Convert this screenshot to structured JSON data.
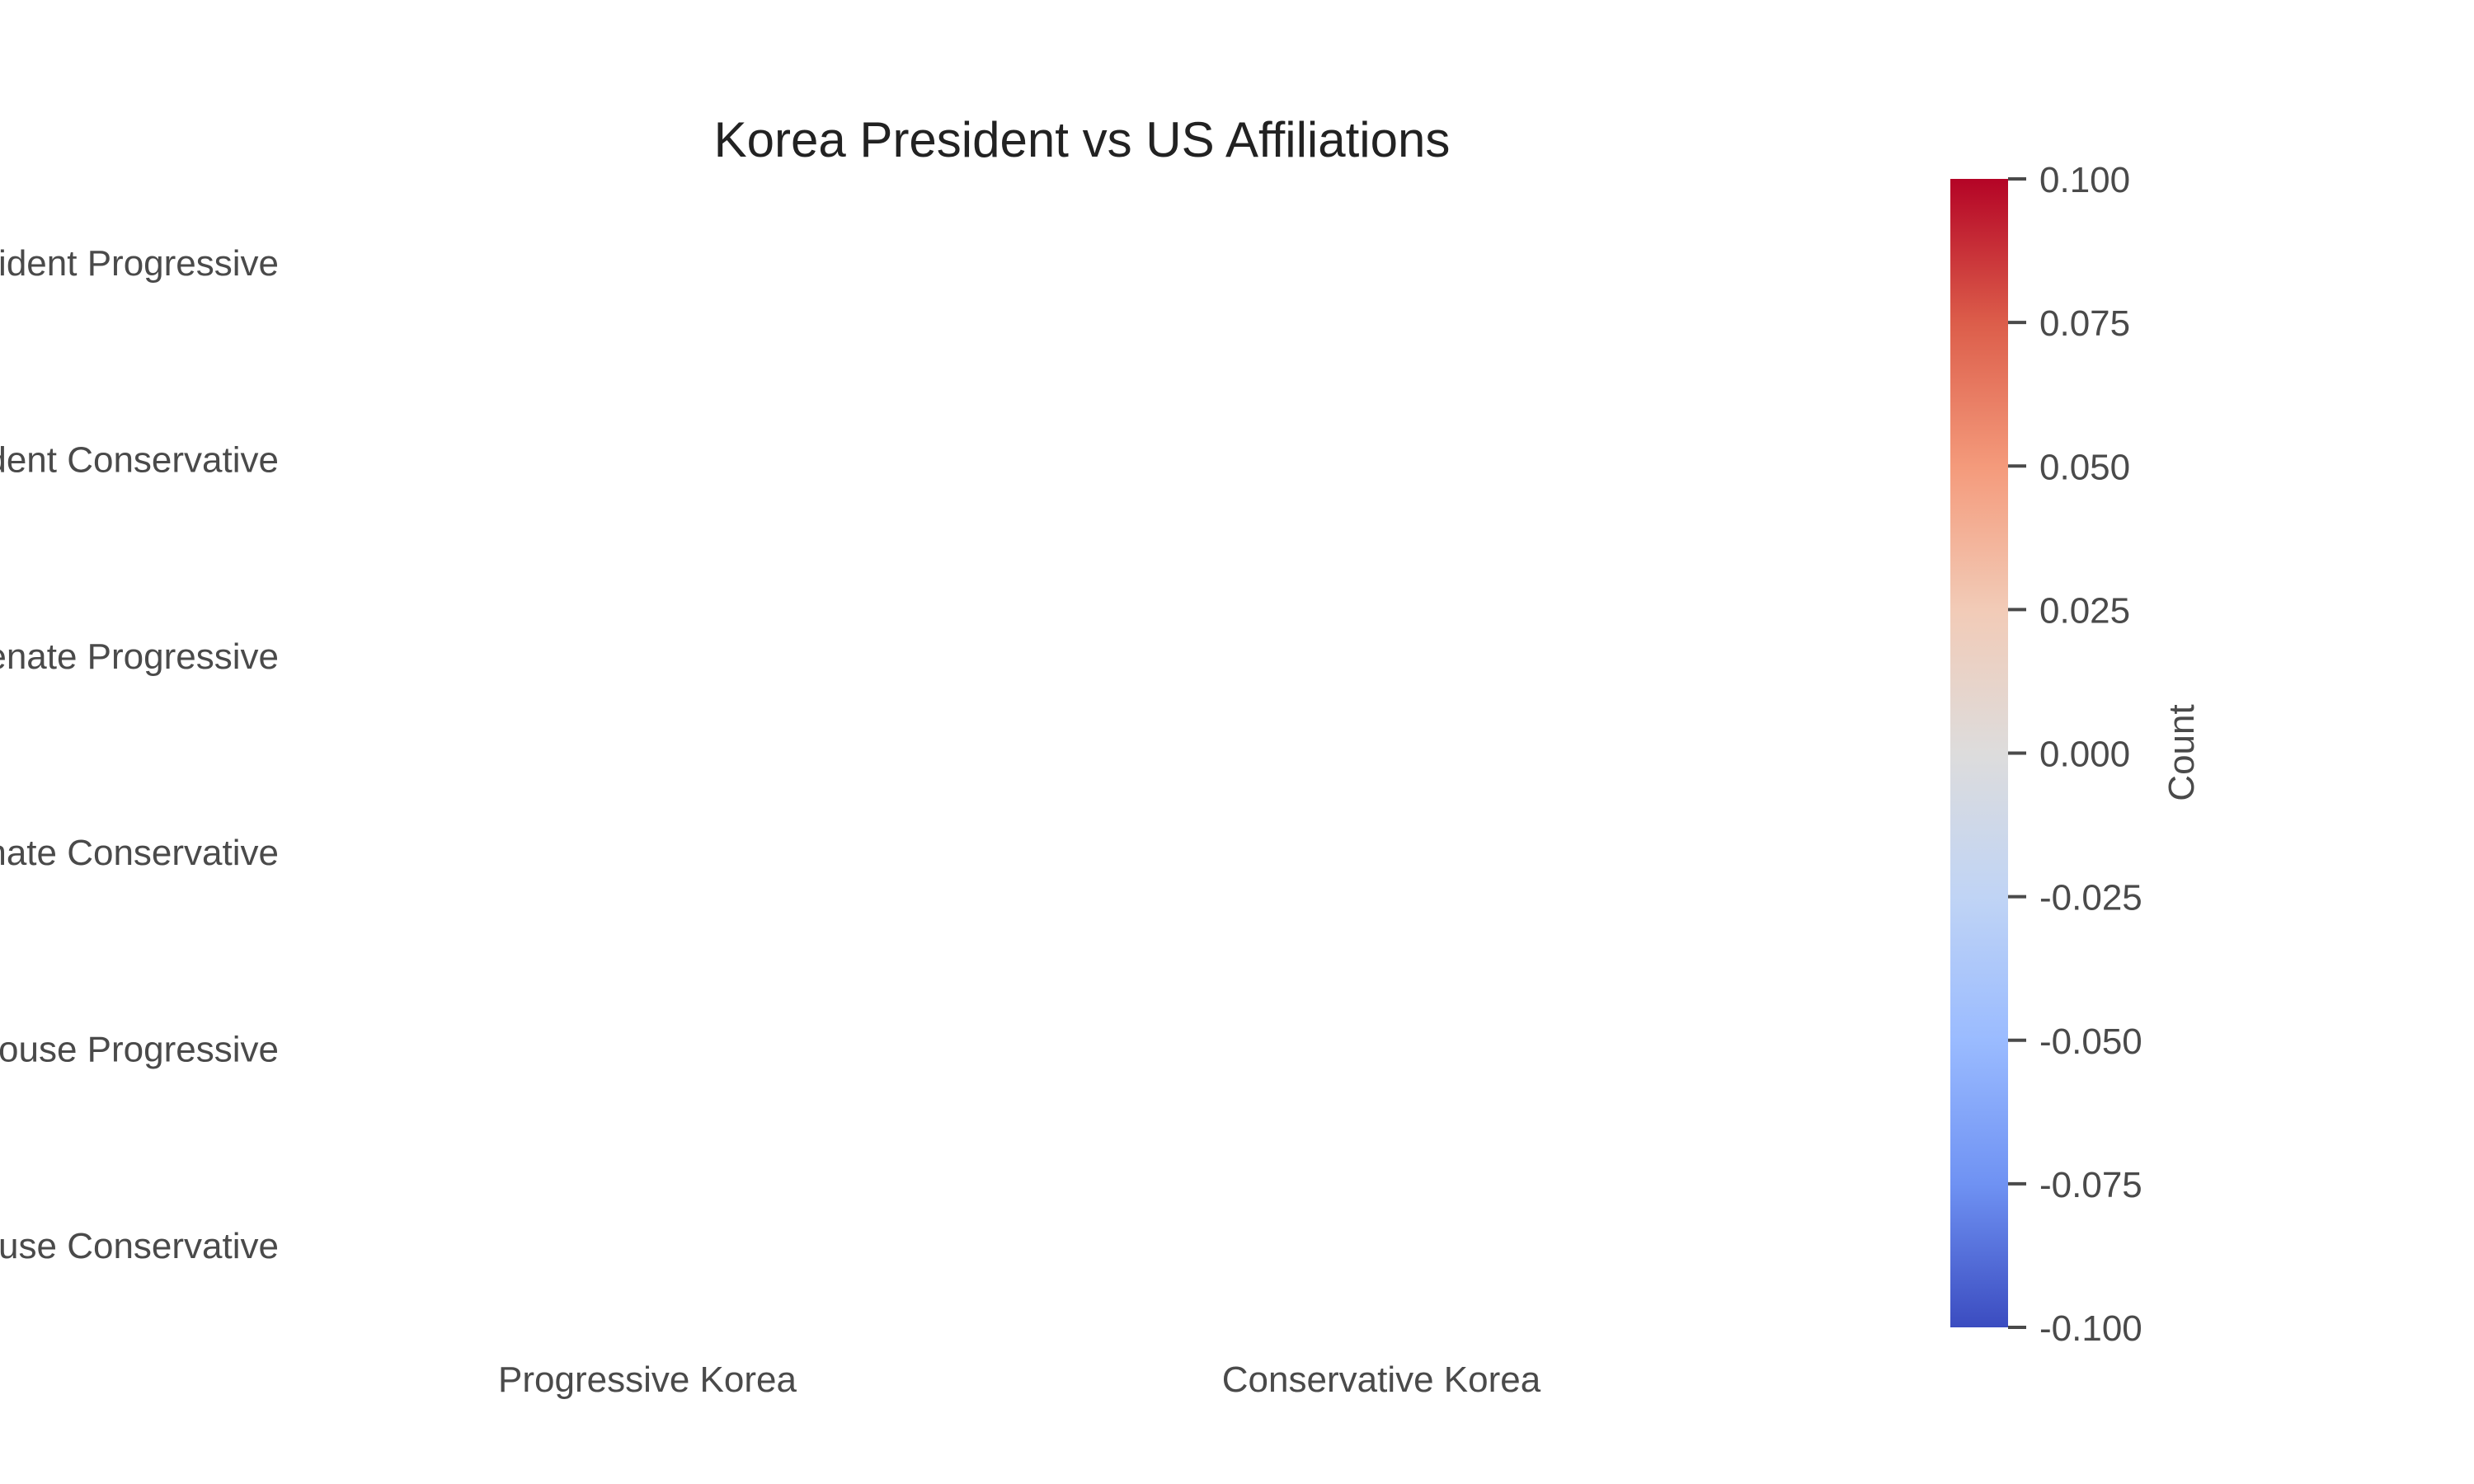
{
  "chart_data": {
    "type": "heatmap",
    "title": "Korea President vs US Affiliations",
    "x_categories": [
      "Progressive Korea",
      "Conservative Korea"
    ],
    "y_categories": [
      "US President Progressive",
      "US President Conservative",
      "US Senate Progressive",
      "US Senate Conservative",
      "US House Progressive",
      "US House Conservative"
    ],
    "values": [],
    "colorbar": {
      "label": "Count",
      "range": [
        -0.1,
        0.1
      ],
      "ticks": [
        "0.100",
        "0.075",
        "0.050",
        "0.025",
        "0.000",
        "-0.025",
        "-0.050",
        "-0.075",
        "-0.100"
      ],
      "colormap": "coolwarm",
      "color_stops": [
        "#b40426",
        "#dc5d4a",
        "#f49a7b",
        "#f2cbb7",
        "#dddcdc",
        "#c0d4f5",
        "#9abbff",
        "#6f92f3",
        "#3b4cc0"
      ]
    },
    "grid": false,
    "legend": "none"
  }
}
